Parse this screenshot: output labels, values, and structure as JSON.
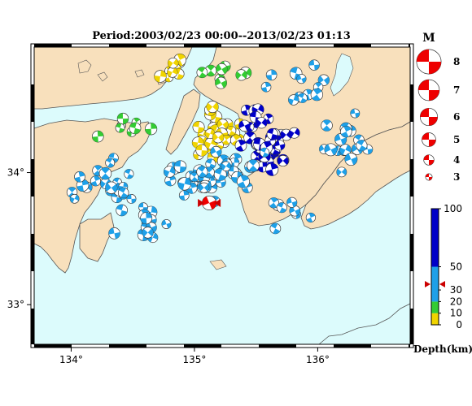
{
  "title": "Period:2003/02/23 00:00--2013/02/23 01:13",
  "map": {
    "lon_ticks": [
      134,
      135,
      136
    ],
    "lat_ticks": [
      33,
      34
    ],
    "lon_labels": [
      "134°",
      "135°",
      "136°"
    ],
    "lat_labels": [
      "33°",
      "34°"
    ],
    "lon_range": [
      133.7,
      136.75
    ],
    "lat_range": [
      32.7,
      34.95
    ],
    "colors": {
      "sea": "#dcfbfc",
      "land": "#f8e0bc",
      "coast": "#555555",
      "frame": "#000000"
    }
  },
  "legend": {
    "magnitude_title": "M",
    "magnitudes": [
      "8",
      "7",
      "6",
      "5",
      "4",
      "3"
    ],
    "depth_unit": "Depth(km)",
    "depth_ticks": [
      "100",
      "50",
      "30",
      "20",
      "10",
      "0"
    ],
    "depth_values": [
      100,
      50,
      30,
      20,
      10,
      0
    ],
    "depth_colors": [
      {
        "from": 0,
        "to": 10,
        "color": "#f0d400"
      },
      {
        "from": 10,
        "to": 20,
        "color": "#33cc33"
      },
      {
        "from": 20,
        "to": 50,
        "color": "#1ea0e8"
      },
      {
        "from": 50,
        "to": 100,
        "color": "#0000c8"
      }
    ],
    "mainshock_depth_marker": 35,
    "mainshock_color": "#ee0000"
  },
  "events": {
    "mainshock": {
      "lon": 135.12,
      "lat": 33.77,
      "depth": 35,
      "mag": 4.5
    },
    "clusters": [
      {
        "lon": 135.2,
        "lat": 34.3,
        "spread": [
          0.25,
          0.25
        ],
        "depth": 5,
        "count": 45,
        "mag": 3.4
      },
      {
        "lon": 134.85,
        "lat": 34.78,
        "spread": [
          0.18,
          0.12
        ],
        "depth": 5,
        "count": 9,
        "mag": 3.3
      },
      {
        "lon": 135.55,
        "lat": 34.25,
        "spread": [
          0.3,
          0.35
        ],
        "depth": 70,
        "count": 40,
        "mag": 3.5
      },
      {
        "lon": 135.1,
        "lat": 33.95,
        "spread": [
          0.55,
          0.25
        ],
        "depth": 30,
        "count": 50,
        "mag": 3.4
      },
      {
        "lon": 134.3,
        "lat": 33.9,
        "spread": [
          0.45,
          0.25
        ],
        "depth": 30,
        "count": 22,
        "mag": 3.3
      },
      {
        "lon": 134.6,
        "lat": 33.6,
        "spread": [
          0.35,
          0.2
        ],
        "depth": 30,
        "count": 14,
        "mag": 3.3
      },
      {
        "lon": 136.2,
        "lat": 34.25,
        "spread": [
          0.35,
          0.3
        ],
        "depth": 35,
        "count": 18,
        "mag": 3.3
      },
      {
        "lon": 135.85,
        "lat": 34.65,
        "spread": [
          0.4,
          0.2
        ],
        "depth": 35,
        "count": 12,
        "mag": 3.3
      },
      {
        "lon": 135.3,
        "lat": 34.75,
        "spread": [
          0.3,
          0.12
        ],
        "depth": 15,
        "count": 8,
        "mag": 3.2
      },
      {
        "lon": 134.5,
        "lat": 34.35,
        "spread": [
          0.35,
          0.25
        ],
        "depth": 15,
        "count": 8,
        "mag": 3.2
      },
      {
        "lon": 135.75,
        "lat": 33.7,
        "spread": [
          0.25,
          0.2
        ],
        "depth": 40,
        "count": 8,
        "mag": 3.3
      }
    ]
  }
}
